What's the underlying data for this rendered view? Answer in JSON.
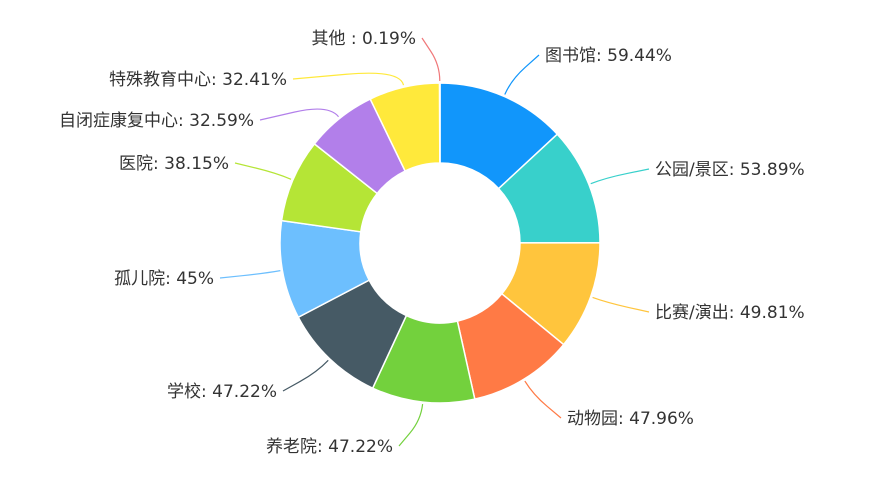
{
  "chart_data": {
    "type": "pie",
    "variant": "donut",
    "legend": "none",
    "categories": [
      "图书馆",
      "公园/景区",
      "比赛/演出",
      "动物园",
      "养老院",
      "学校",
      "孤儿院",
      "医院",
      "自闭症康复中心",
      "特殊教育中心",
      "其他 "
    ],
    "values": [
      59.44,
      53.89,
      49.81,
      47.96,
      47.22,
      47.22,
      45,
      38.15,
      32.59,
      32.41,
      0.19
    ],
    "labels": [
      "图书馆: 59.44%",
      "公园/景区: 53.89%",
      "比赛/演出: 49.81%",
      "动物园: 47.96%",
      "养老院: 47.22%",
      "学校: 47.22%",
      "孤儿院: 45%",
      "医院: 38.15%",
      "自闭症康复中心: 32.59%",
      "特殊教育中心: 32.41%",
      "其他  : 0.19%"
    ],
    "colors": [
      "#1196fb",
      "#38d0cb",
      "#ffc53d",
      "#ff7a45",
      "#73d13d",
      "#465a65",
      "#6dbffe",
      "#b5e536",
      "#b27fea",
      "#ffe93b",
      "#f0787a"
    ]
  }
}
